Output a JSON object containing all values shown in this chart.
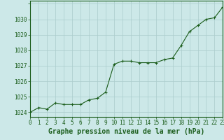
{
  "x": [
    0,
    1,
    2,
    3,
    4,
    5,
    6,
    7,
    8,
    9,
    10,
    11,
    12,
    13,
    14,
    15,
    16,
    17,
    18,
    19,
    20,
    21,
    22,
    23
  ],
  "y": [
    1024.0,
    1024.3,
    1024.2,
    1024.6,
    1024.5,
    1024.5,
    1024.5,
    1024.8,
    1024.9,
    1025.3,
    1027.1,
    1027.3,
    1027.3,
    1027.2,
    1027.2,
    1027.2,
    1027.4,
    1027.5,
    1028.3,
    1029.2,
    1029.6,
    1030.0,
    1030.1,
    1030.8
  ],
  "line_color": "#1a5c1a",
  "marker": "+",
  "marker_size": 3,
  "marker_linewidth": 0.8,
  "line_width": 0.8,
  "background_color": "#cce8e8",
  "grid_color": "#aacccc",
  "xlabel": "Graphe pression niveau de la mer (hPa)",
  "xlabel_fontsize": 7,
  "xlabel_color": "#1a5c1a",
  "ylabel_ticks": [
    1024,
    1025,
    1026,
    1027,
    1028,
    1029,
    1030
  ],
  "xlim": [
    0,
    23
  ],
  "ylim": [
    1023.7,
    1031.2
  ],
  "tick_fontsize": 5.5,
  "tick_color": "#1a5c1a",
  "spine_color": "#1a5c1a",
  "xtick_labels": [
    "0",
    "1",
    "2",
    "3",
    "4",
    "5",
    "6",
    "7",
    "8",
    "9",
    "10",
    "11",
    "12",
    "13",
    "14",
    "15",
    "16",
    "17",
    "18",
    "19",
    "20",
    "21",
    "22",
    "23"
  ]
}
